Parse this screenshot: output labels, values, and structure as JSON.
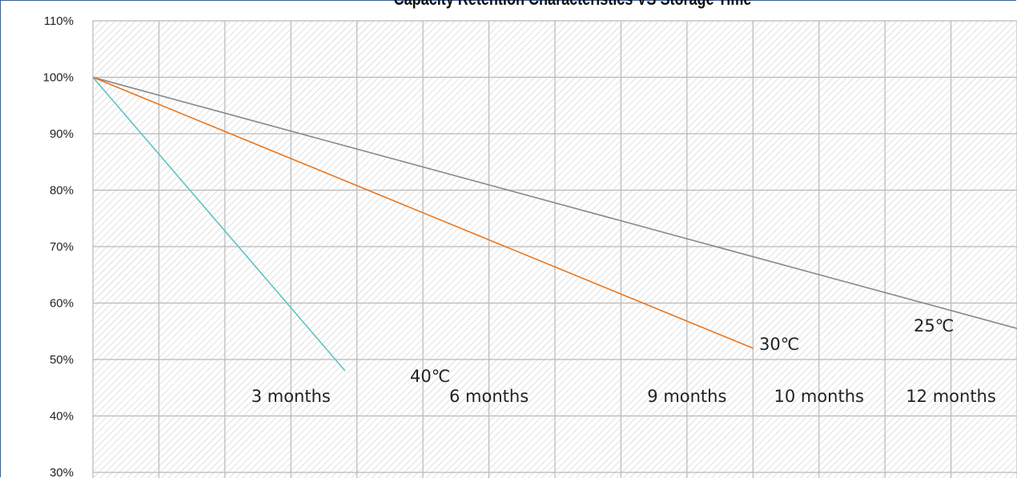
{
  "chart_data": {
    "type": "line",
    "title": "Capacity Retention Characteristics VS Storage Time",
    "xlabel": "",
    "ylabel": "",
    "ylim": [
      30,
      110
    ],
    "y_ticks": [
      "30%",
      "40%",
      "50%",
      "60%",
      "70%",
      "80%",
      "90%",
      "100%",
      "110%"
    ],
    "x_range_months": [
      0,
      14
    ],
    "x_tick_labels": [
      {
        "label": "3 months",
        "x": 3
      },
      {
        "label": "6 months",
        "x": 6
      },
      {
        "label": "9 months",
        "x": 9
      },
      {
        "label": "10 months",
        "x": 11
      },
      {
        "label": "12 months",
        "x": 13
      }
    ],
    "grid": true,
    "series": [
      {
        "name": "25℃",
        "color": "#888888",
        "points": [
          {
            "x": 0,
            "y": 100
          },
          {
            "x": 14,
            "y": 55.5
          }
        ]
      },
      {
        "name": "30℃",
        "color": "#e8761e",
        "points": [
          {
            "x": 0,
            "y": 100
          },
          {
            "x": 10,
            "y": 52
          }
        ]
      },
      {
        "name": "40℃",
        "color": "#5fc3c3",
        "points": [
          {
            "x": 0,
            "y": 100
          },
          {
            "x": 3.82,
            "y": 48
          }
        ]
      }
    ]
  },
  "colors": {
    "grid": "#b9b9b9",
    "hatch": "#d2d2d2",
    "frame": "#3a5f9a"
  }
}
